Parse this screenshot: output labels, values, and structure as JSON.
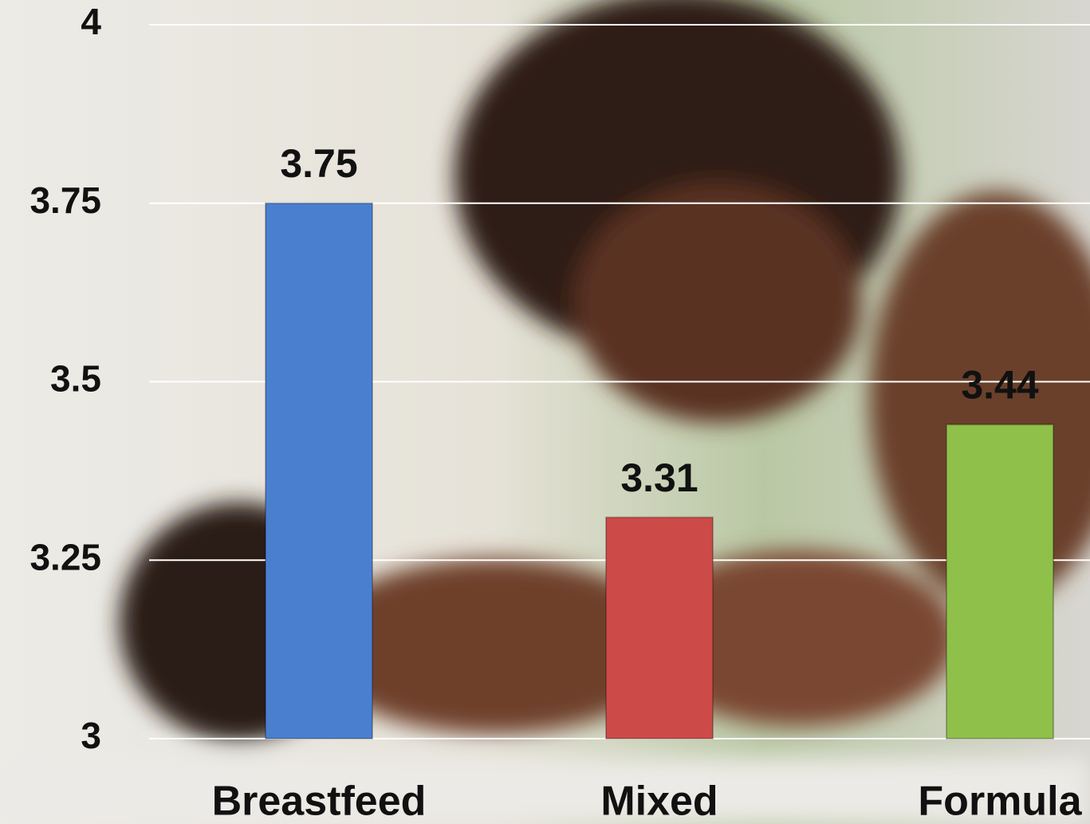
{
  "chart_data": {
    "type": "bar",
    "categories": [
      "Breastfeed",
      "Mixed",
      "Formula"
    ],
    "values": [
      3.75,
      3.31,
      3.44
    ],
    "colors": [
      "#4a7fcf",
      "#cc4a48",
      "#8fc04a"
    ],
    "ylim": [
      3,
      4
    ],
    "yticks": [
      3,
      3.25,
      3.5,
      3.75,
      4
    ],
    "grid": true
  }
}
